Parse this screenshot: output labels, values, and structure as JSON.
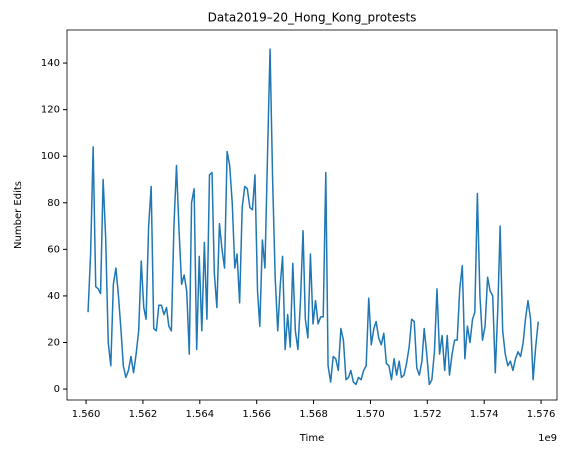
{
  "chart_data": {
    "type": "line",
    "title": "Data2019–20_Hong_Kong_protests",
    "xlabel": "Time",
    "ylabel": "Number Edits",
    "x_offset_label": "1e9",
    "color": "#1f77b4",
    "x": [
      1.56007,
      1.56016,
      1.56025,
      1.56034,
      1.56043,
      1.56051,
      1.5606,
      1.56069,
      1.56078,
      1.56087,
      1.56096,
      1.56105,
      1.56114,
      1.56123,
      1.56131,
      1.5614,
      1.56149,
      1.56158,
      1.56167,
      1.56176,
      1.56185,
      1.56194,
      1.56203,
      1.56211,
      1.5622,
      1.56229,
      1.56238,
      1.56247,
      1.56256,
      1.56265,
      1.56274,
      1.56283,
      1.56291,
      1.563,
      1.56309,
      1.56318,
      1.56327,
      1.56336,
      1.56345,
      1.56354,
      1.56363,
      1.56371,
      1.5638,
      1.56389,
      1.56398,
      1.56407,
      1.56416,
      1.56425,
      1.56434,
      1.56443,
      1.56451,
      1.5646,
      1.56469,
      1.56478,
      1.56487,
      1.56496,
      1.56505,
      1.56514,
      1.56523,
      1.56531,
      1.5654,
      1.56549,
      1.56558,
      1.56567,
      1.56576,
      1.56585,
      1.56594,
      1.56603,
      1.56611,
      1.5662,
      1.56629,
      1.56638,
      1.56647,
      1.56656,
      1.56665,
      1.56674,
      1.56683,
      1.56691,
      1.567,
      1.56709,
      1.56718,
      1.56727,
      1.56736,
      1.56745,
      1.56754,
      1.56763,
      1.56771,
      1.5678,
      1.56789,
      1.56798,
      1.56807,
      1.56816,
      1.56825,
      1.56834,
      1.56843,
      1.56851,
      1.5686,
      1.56869,
      1.56878,
      1.56887,
      1.56896,
      1.56905,
      1.56914,
      1.56923,
      1.56931,
      1.5694,
      1.56949,
      1.56958,
      1.56967,
      1.56976,
      1.56985,
      1.56994,
      1.57003,
      1.57012,
      1.5702,
      1.57029,
      1.57038,
      1.57047,
      1.57056,
      1.57065,
      1.57074,
      1.57083,
      1.57092,
      1.57101,
      1.57109,
      1.57118,
      1.57127,
      1.57136,
      1.57145,
      1.57154,
      1.57163,
      1.57172,
      1.57181,
      1.57189,
      1.57198,
      1.57207,
      1.57216,
      1.57225,
      1.57234,
      1.57243,
      1.57252,
      1.57261,
      1.5727,
      1.57278,
      1.57287,
      1.57296,
      1.57305,
      1.57314,
      1.57323,
      1.57332,
      1.57341,
      1.5735,
      1.57359,
      1.57367,
      1.57376,
      1.57385,
      1.57394,
      1.57403,
      1.57412,
      1.57421,
      1.5743,
      1.57439,
      1.57448,
      1.57456,
      1.57465,
      1.57474,
      1.57483,
      1.57492,
      1.57501,
      1.5751,
      1.57519,
      1.57528,
      1.57537,
      1.57545,
      1.57554,
      1.57563,
      1.57572,
      1.57581,
      1.5759
    ],
    "values": [
      33,
      58,
      104,
      44,
      43,
      41,
      90,
      65,
      20,
      10,
      45,
      52,
      40,
      25,
      10,
      5,
      8,
      14,
      7,
      15,
      25,
      55,
      35,
      30,
      70,
      87,
      26,
      25,
      36,
      36,
      32,
      35,
      27,
      25,
      70,
      96,
      68,
      45,
      49,
      42,
      15,
      80,
      86,
      17,
      57,
      25,
      63,
      30,
      92,
      93,
      50,
      35,
      71,
      60,
      52,
      102,
      96,
      80,
      52,
      58,
      37,
      78,
      87,
      86,
      78,
      77,
      92,
      42,
      27,
      64,
      52,
      100,
      146,
      90,
      48,
      25,
      45,
      57,
      17,
      32,
      18,
      54,
      25,
      17,
      38,
      68,
      30,
      22,
      58,
      28,
      38,
      28,
      31,
      31,
      93,
      10,
      3,
      14,
      13,
      8,
      26,
      21,
      4,
      5,
      8,
      3,
      2,
      5,
      4,
      8,
      10,
      39,
      19,
      26,
      29,
      22,
      19,
      24,
      11,
      10,
      4,
      13,
      6,
      12,
      5,
      6,
      11,
      18,
      30,
      29,
      9,
      6,
      12,
      26,
      15,
      2,
      4,
      16,
      43,
      15,
      23,
      8,
      23,
      6,
      15,
      21,
      21,
      43,
      53,
      13,
      27,
      20,
      30,
      33,
      84,
      40,
      21,
      27,
      48,
      42,
      40,
      7,
      35,
      70,
      25,
      15,
      10,
      12,
      8,
      13,
      16,
      14,
      20,
      30,
      38,
      30,
      4,
      18,
      29
    ],
    "xlim": [
      1.55933,
      1.57656
    ],
    "xticks": [
      {
        "value": 1.56,
        "label": "1.560"
      },
      {
        "value": 1.562,
        "label": "1.562"
      },
      {
        "value": 1.564,
        "label": "1.564"
      },
      {
        "value": 1.566,
        "label": "1.566"
      },
      {
        "value": 1.568,
        "label": "1.568"
      },
      {
        "value": 1.57,
        "label": "1.570"
      },
      {
        "value": 1.572,
        "label": "1.572"
      },
      {
        "value": 1.574,
        "label": "1.574"
      },
      {
        "value": 1.576,
        "label": "1.576"
      }
    ],
    "ylim": [
      -4.7,
      154.2
    ],
    "yticks": [
      0,
      20,
      40,
      60,
      80,
      100,
      120,
      140
    ],
    "grid": false
  }
}
